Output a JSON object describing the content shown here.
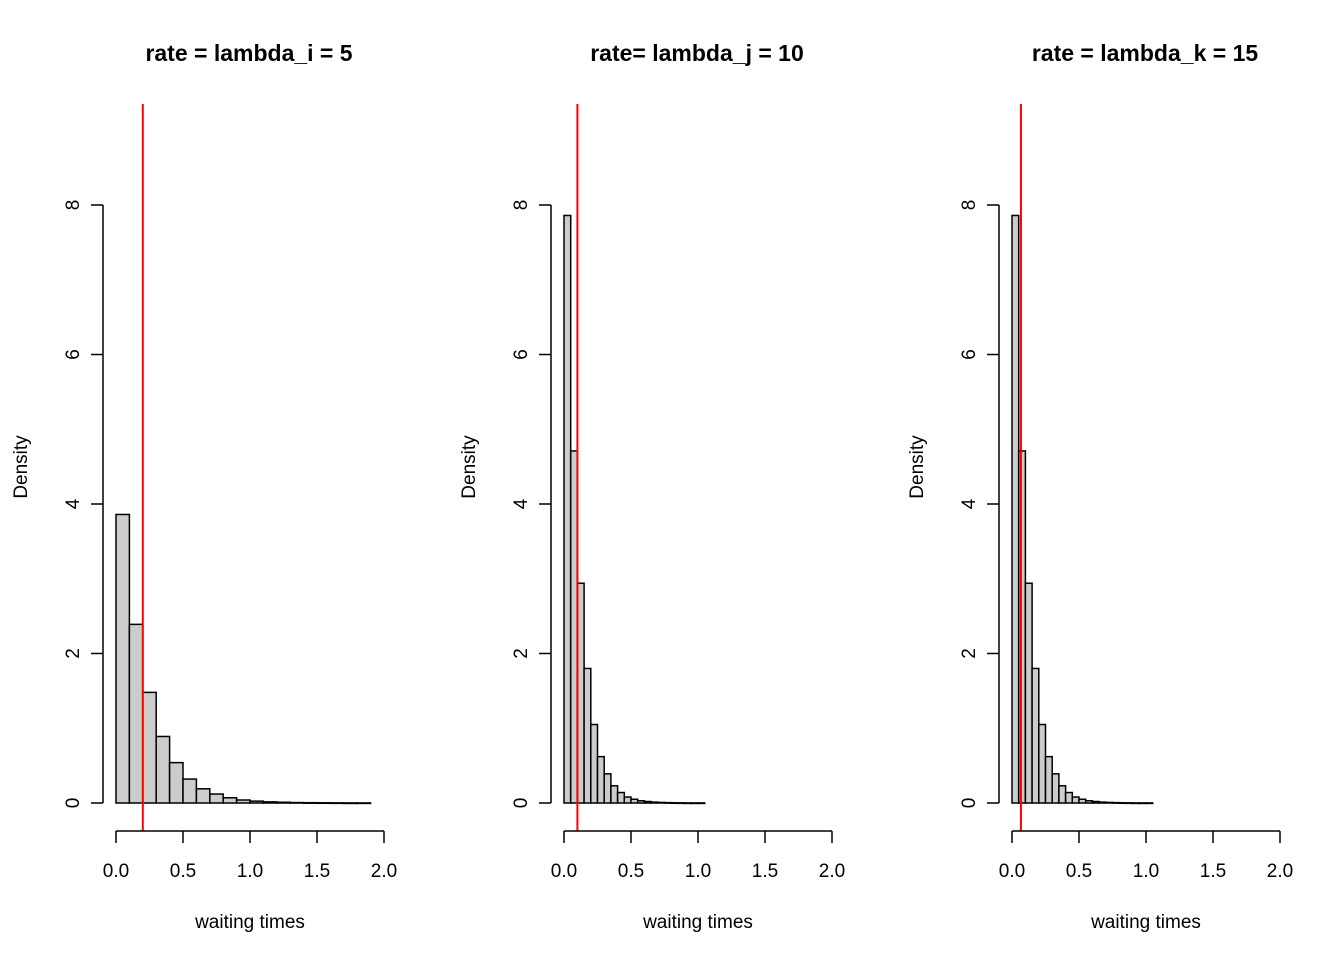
{
  "chart_data": [
    {
      "type": "bar",
      "title": "rate = lambda_i = 5",
      "xlabel": "waiting times",
      "ylabel": "Density",
      "xlim": [
        0,
        2
      ],
      "ylim": [
        0,
        8
      ],
      "x_ticks": [
        "0.0",
        "0.5",
        "1.0",
        "1.5",
        "2.0"
      ],
      "y_ticks": [
        "0",
        "2",
        "4",
        "6",
        "8"
      ],
      "bin_width": 0.1,
      "bin_start": 0,
      "values": [
        3.86,
        2.39,
        1.48,
        0.89,
        0.54,
        0.32,
        0.19,
        0.12,
        0.07,
        0.04,
        0.025,
        0.015,
        0.01,
        0.006,
        0.004,
        0.003,
        0.002,
        0.001,
        0.001
      ],
      "vline": 0.2,
      "vline_color": "#ff0000",
      "bar_fill": "#cccccc",
      "grid": false
    },
    {
      "type": "bar",
      "title": "rate= lambda_j = 10",
      "xlabel": "waiting times",
      "ylabel": "Density",
      "xlim": [
        0,
        2
      ],
      "ylim": [
        0,
        8
      ],
      "x_ticks": [
        "0.0",
        "0.5",
        "1.0",
        "1.5",
        "2.0"
      ],
      "y_ticks": [
        "0",
        "2",
        "4",
        "6",
        "8"
      ],
      "bin_width": 0.05,
      "bin_start": 0,
      "values": [
        7.86,
        4.71,
        2.94,
        1.8,
        1.05,
        0.62,
        0.39,
        0.23,
        0.14,
        0.08,
        0.05,
        0.03,
        0.02,
        0.012,
        0.008,
        0.005,
        0.003,
        0.002,
        0.001,
        0.001,
        0.001
      ],
      "vline": 0.1,
      "vline_color": "#ff0000",
      "bar_fill": "#cccccc",
      "grid": false
    },
    {
      "type": "bar",
      "title": "rate = lambda_k = 15",
      "xlabel": "waiting times",
      "ylabel": "Density",
      "xlim": [
        0,
        2
      ],
      "ylim": [
        0,
        8
      ],
      "x_ticks": [
        "0.0",
        "0.5",
        "1.0",
        "1.5",
        "2.0"
      ],
      "y_ticks": [
        "0",
        "2",
        "4",
        "6",
        "8"
      ],
      "bin_width": 0.05,
      "bin_start": 0,
      "values": [
        7.86,
        4.71,
        2.94,
        1.8,
        1.05,
        0.62,
        0.39,
        0.23,
        0.14,
        0.08,
        0.05,
        0.03,
        0.02,
        0.012,
        0.008,
        0.005,
        0.003,
        0.002,
        0.001,
        0.001,
        0.001
      ],
      "vline": 0.0667,
      "vline_color": "#ff0000",
      "bar_fill": "#cccccc",
      "grid": false
    }
  ]
}
